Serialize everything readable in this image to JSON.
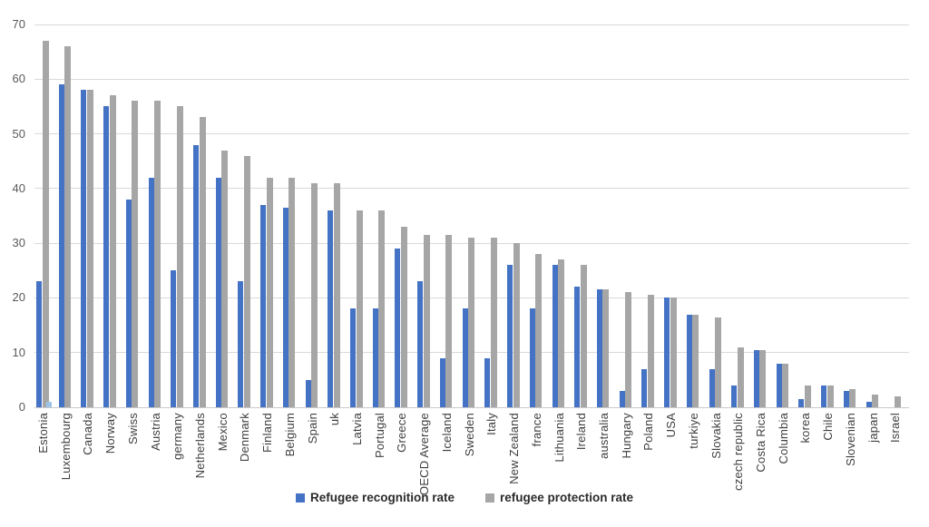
{
  "chart_data": {
    "type": "bar",
    "title": "",
    "xlabel": "",
    "ylabel": "",
    "ylim": [
      0,
      70
    ],
    "yticks": [
      0,
      10,
      20,
      30,
      40,
      50,
      60,
      70
    ],
    "grid": true,
    "legend_position": "bottom",
    "categories": [
      "Estonia",
      "Luxembourg",
      "Canada",
      "Norway",
      "Swiss",
      "Austria",
      "germany",
      "Netherlands",
      "Mexico",
      "Denmark",
      "Finland",
      "Belgium",
      "Spain",
      "uk",
      "Latvia",
      "Portugal",
      "Greece",
      "OECD Average",
      "Iceland",
      "Sweden",
      "Italy",
      "New Zealand",
      "france",
      "Lithuania",
      "Ireland",
      "australia",
      "Hungary",
      "Poland",
      "USA",
      "turkiye",
      "Slovakia",
      "czech republic",
      "Costa Rica",
      "Columbia",
      "korea",
      "Chile",
      "Slovenian",
      "japan",
      "Israel"
    ],
    "series": [
      {
        "name": "Refugee recognition rate",
        "color": "#4472c4",
        "values": [
          23,
          59,
          58,
          55,
          38,
          42,
          25,
          48,
          42,
          23,
          37,
          36.5,
          5,
          36,
          18,
          18,
          29,
          23,
          9,
          18,
          9,
          26,
          18,
          26,
          22,
          21.5,
          3,
          7,
          20,
          17,
          7,
          4,
          10.5,
          8,
          1.5,
          4,
          3,
          1,
          0
        ]
      },
      {
        "name": "refugee protection rate",
        "color": "#a6a6a6",
        "values": [
          67,
          66,
          58,
          57,
          56,
          56,
          55,
          53,
          47,
          46,
          42,
          42,
          41,
          41,
          36,
          36,
          33,
          31.5,
          31.5,
          31,
          31,
          30,
          28,
          27,
          26,
          21.5,
          21,
          20.5,
          20,
          17,
          16.5,
          11,
          10.5,
          8,
          4,
          4,
          3.3,
          2.3,
          2
        ]
      }
    ],
    "extra_bar": {
      "category": "Estonia",
      "value": 1,
      "color": "#9dc3e6"
    }
  },
  "axis": {
    "tick_labels": [
      "0",
      "10",
      "20",
      "30",
      "40",
      "50",
      "60",
      "70"
    ]
  },
  "legend": {
    "recognition_label": "Refugee recognition rate",
    "protection_label": "refugee protection rate"
  }
}
